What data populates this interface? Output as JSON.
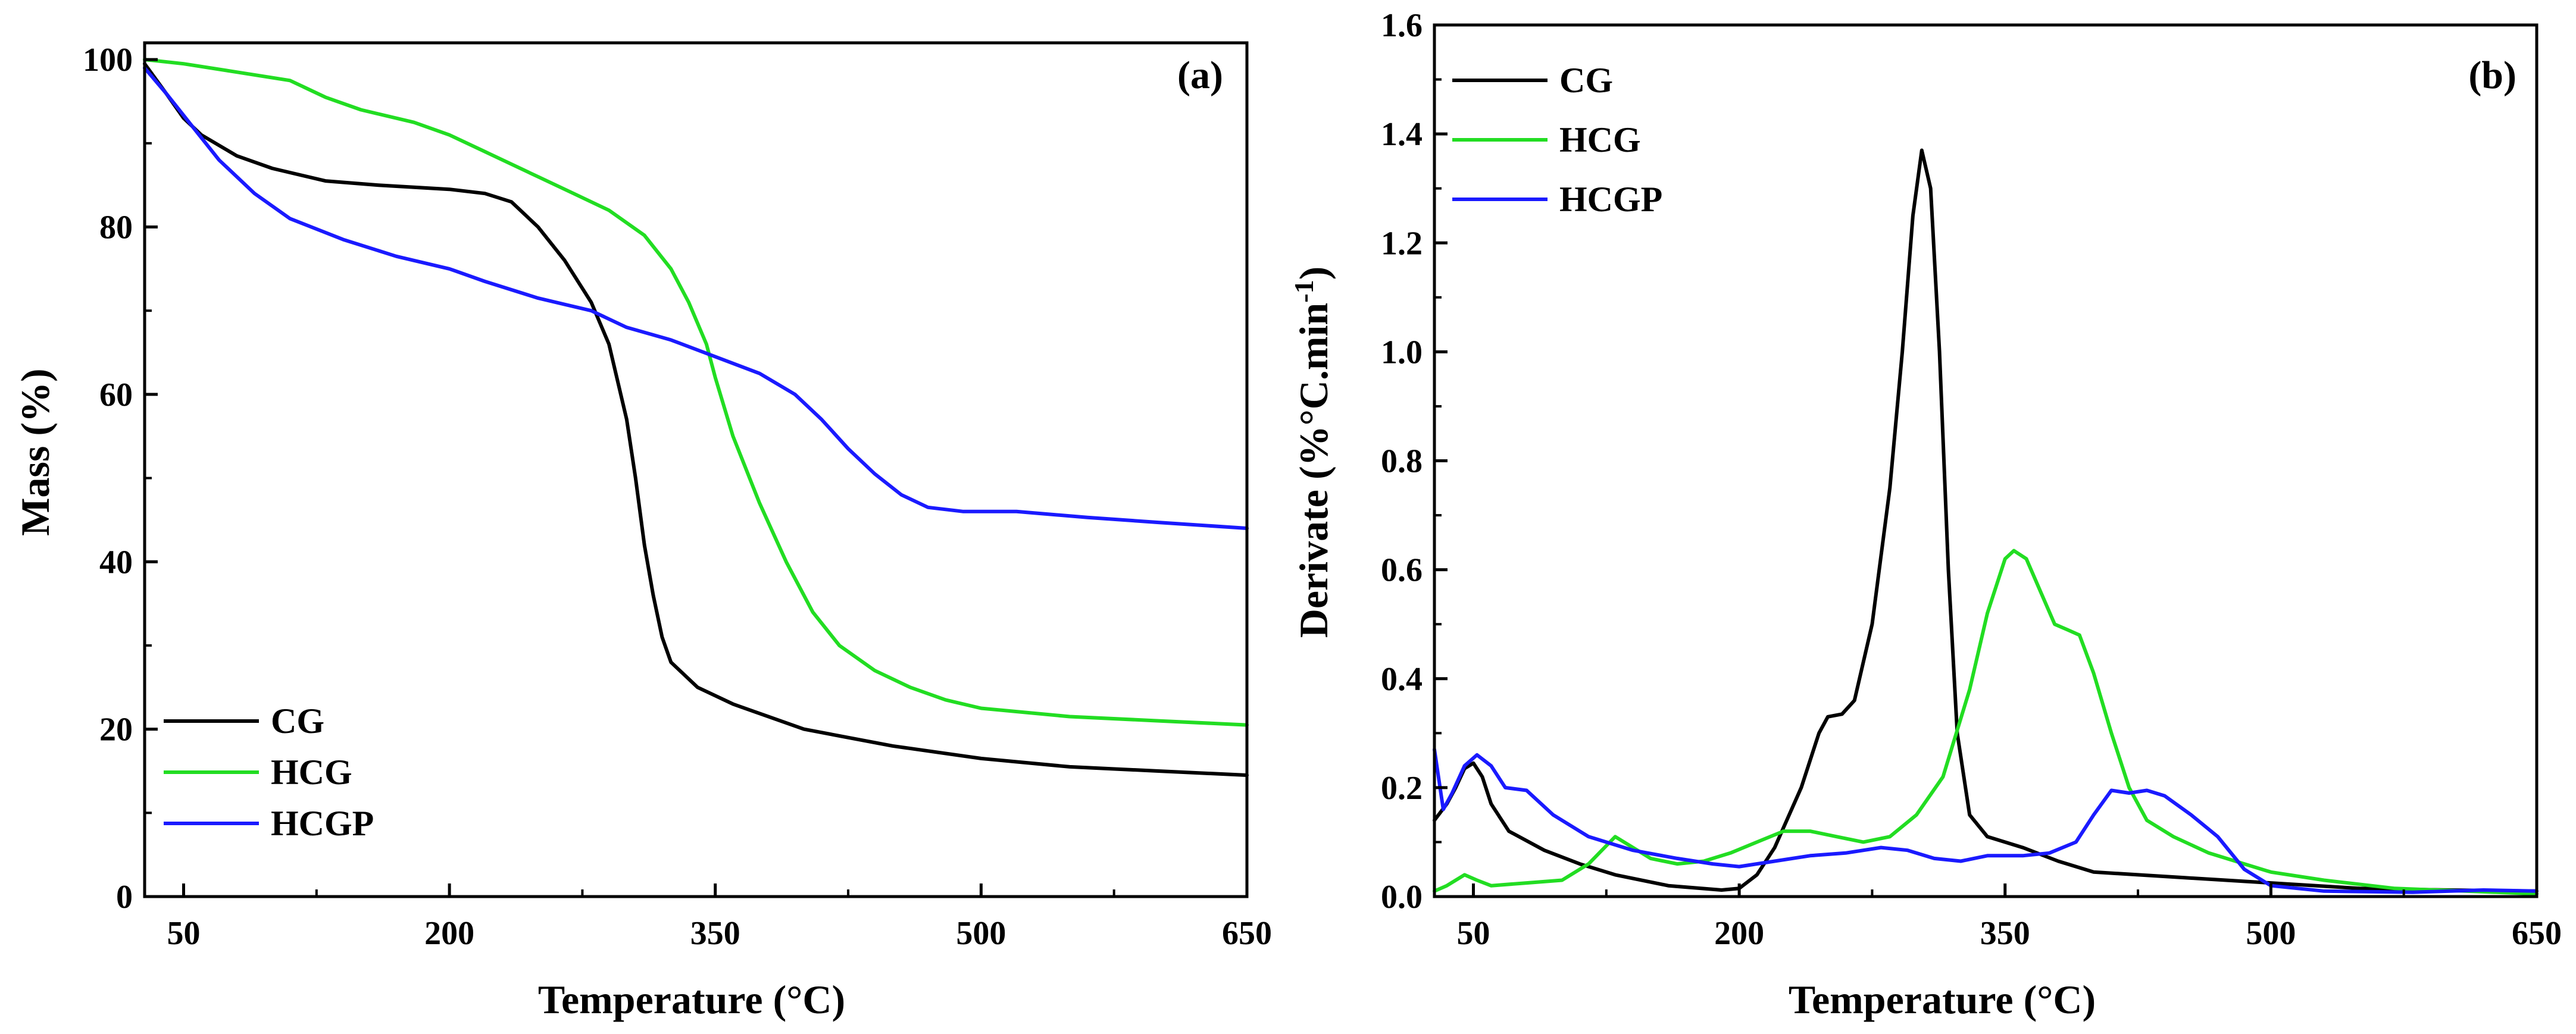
{
  "chart_data": [
    {
      "panel": "(a)",
      "type": "line",
      "title": "",
      "xlabel": "Temperature (°C)",
      "ylabel": "Mass (%)",
      "xlim": [
        28,
        650
      ],
      "ylim": [
        0,
        102
      ],
      "xticks": [
        50,
        200,
        350,
        500,
        650
      ],
      "yticks": [
        0,
        20,
        40,
        60,
        80,
        100
      ],
      "grid": false,
      "legend_position": "bottom-left",
      "series": [
        {
          "name": "CG",
          "color": "#000000",
          "points": [
            [
              28,
              99.5
            ],
            [
              40,
              96
            ],
            [
              50,
              93
            ],
            [
              60,
              91
            ],
            [
              80,
              88.5
            ],
            [
              100,
              87
            ],
            [
              130,
              85.5
            ],
            [
              160,
              85
            ],
            [
              200,
              84.5
            ],
            [
              220,
              84
            ],
            [
              235,
              83
            ],
            [
              250,
              80
            ],
            [
              265,
              76
            ],
            [
              280,
              71
            ],
            [
              290,
              66
            ],
            [
              300,
              57
            ],
            [
              305,
              50
            ],
            [
              310,
              42
            ],
            [
              315,
              36
            ],
            [
              320,
              31
            ],
            [
              325,
              28
            ],
            [
              340,
              25
            ],
            [
              360,
              23
            ],
            [
              400,
              20
            ],
            [
              450,
              18
            ],
            [
              500,
              16.5
            ],
            [
              550,
              15.5
            ],
            [
              600,
              15
            ],
            [
              650,
              14.5
            ]
          ]
        },
        {
          "name": "HCG",
          "color": "#22dd22",
          "points": [
            [
              28,
              100
            ],
            [
              50,
              99.5
            ],
            [
              80,
              98.5
            ],
            [
              110,
              97.5
            ],
            [
              130,
              95.5
            ],
            [
              150,
              94
            ],
            [
              180,
              92.5
            ],
            [
              200,
              91
            ],
            [
              220,
              89
            ],
            [
              250,
              86
            ],
            [
              270,
              84
            ],
            [
              290,
              82
            ],
            [
              310,
              79
            ],
            [
              325,
              75
            ],
            [
              335,
              71
            ],
            [
              345,
              66
            ],
            [
              350,
              62
            ],
            [
              360,
              55
            ],
            [
              375,
              47
            ],
            [
              390,
              40
            ],
            [
              405,
              34
            ],
            [
              420,
              30
            ],
            [
              440,
              27
            ],
            [
              460,
              25
            ],
            [
              480,
              23.5
            ],
            [
              500,
              22.5
            ],
            [
              550,
              21.5
            ],
            [
              600,
              21
            ],
            [
              650,
              20.5
            ]
          ]
        },
        {
          "name": "HCGP",
          "color": "#1a1aff",
          "points": [
            [
              28,
              99
            ],
            [
              40,
              96
            ],
            [
              55,
              92
            ],
            [
              70,
              88
            ],
            [
              90,
              84
            ],
            [
              110,
              81
            ],
            [
              140,
              78.5
            ],
            [
              170,
              76.5
            ],
            [
              200,
              75
            ],
            [
              220,
              73.5
            ],
            [
              250,
              71.5
            ],
            [
              280,
              70
            ],
            [
              300,
              68
            ],
            [
              325,
              66.5
            ],
            [
              350,
              64.5
            ],
            [
              375,
              62.5
            ],
            [
              395,
              60
            ],
            [
              410,
              57
            ],
            [
              425,
              53.5
            ],
            [
              440,
              50.5
            ],
            [
              455,
              48
            ],
            [
              470,
              46.5
            ],
            [
              490,
              46
            ],
            [
              520,
              46
            ],
            [
              560,
              45.3
            ],
            [
              600,
              44.7
            ],
            [
              650,
              44
            ]
          ]
        }
      ]
    },
    {
      "panel": "(b)",
      "type": "line",
      "title": "",
      "xlabel": "Temperature (°C)",
      "ylabel": "Derivate (%°C.min",
      "ylabel_superscript": "-1",
      "ylabel_close": ")",
      "xlim": [
        28,
        650
      ],
      "ylim": [
        0,
        1.6
      ],
      "xticks": [
        50,
        200,
        350,
        500,
        650
      ],
      "yticks": [
        0.0,
        0.2,
        0.4,
        0.6,
        0.8,
        1.0,
        1.2,
        1.4,
        1.6
      ],
      "ytick_labels": [
        "0.0",
        "0.2",
        "0.4",
        "0.6",
        "0.8",
        "1.0",
        "1.2",
        "1.4",
        "1.6"
      ],
      "grid": false,
      "legend_position": "top-left",
      "series": [
        {
          "name": "CG",
          "color": "#000000",
          "points": [
            [
              28,
              0.14
            ],
            [
              35,
              0.17
            ],
            [
              40,
              0.2
            ],
            [
              45,
              0.235
            ],
            [
              50,
              0.245
            ],
            [
              55,
              0.22
            ],
            [
              60,
              0.17
            ],
            [
              70,
              0.12
            ],
            [
              90,
              0.085
            ],
            [
              110,
              0.06
            ],
            [
              130,
              0.04
            ],
            [
              160,
              0.02
            ],
            [
              190,
              0.012
            ],
            [
              200,
              0.015
            ],
            [
              210,
              0.04
            ],
            [
              220,
              0.09
            ],
            [
              235,
              0.2
            ],
            [
              245,
              0.3
            ],
            [
              250,
              0.33
            ],
            [
              258,
              0.335
            ],
            [
              265,
              0.36
            ],
            [
              275,
              0.5
            ],
            [
              285,
              0.75
            ],
            [
              292,
              1.0
            ],
            [
              298,
              1.25
            ],
            [
              303,
              1.37
            ],
            [
              308,
              1.3
            ],
            [
              313,
              1.0
            ],
            [
              318,
              0.6
            ],
            [
              323,
              0.3
            ],
            [
              330,
              0.15
            ],
            [
              340,
              0.11
            ],
            [
              360,
              0.09
            ],
            [
              380,
              0.065
            ],
            [
              400,
              0.045
            ],
            [
              450,
              0.035
            ],
            [
              500,
              0.025
            ],
            [
              550,
              0.015
            ],
            [
              600,
              0.012
            ],
            [
              650,
              0.01
            ]
          ]
        },
        {
          "name": "HCG",
          "color": "#22dd22",
          "points": [
            [
              28,
              0.01
            ],
            [
              35,
              0.02
            ],
            [
              45,
              0.04
            ],
            [
              52,
              0.03
            ],
            [
              60,
              0.02
            ],
            [
              80,
              0.025
            ],
            [
              100,
              0.03
            ],
            [
              115,
              0.06
            ],
            [
              130,
              0.11
            ],
            [
              140,
              0.09
            ],
            [
              150,
              0.07
            ],
            [
              165,
              0.06
            ],
            [
              180,
              0.065
            ],
            [
              195,
              0.08
            ],
            [
              210,
              0.1
            ],
            [
              225,
              0.12
            ],
            [
              240,
              0.12
            ],
            [
              255,
              0.11
            ],
            [
              270,
              0.1
            ],
            [
              285,
              0.11
            ],
            [
              300,
              0.15
            ],
            [
              315,
              0.22
            ],
            [
              330,
              0.38
            ],
            [
              340,
              0.52
            ],
            [
              350,
              0.62
            ],
            [
              355,
              0.635
            ],
            [
              362,
              0.62
            ],
            [
              370,
              0.56
            ],
            [
              378,
              0.5
            ],
            [
              385,
              0.49
            ],
            [
              392,
              0.48
            ],
            [
              400,
              0.41
            ],
            [
              410,
              0.3
            ],
            [
              420,
              0.2
            ],
            [
              430,
              0.14
            ],
            [
              445,
              0.11
            ],
            [
              465,
              0.08
            ],
            [
              485,
              0.06
            ],
            [
              500,
              0.045
            ],
            [
              530,
              0.03
            ],
            [
              570,
              0.015
            ],
            [
              610,
              0.01
            ],
            [
              650,
              0.005
            ]
          ]
        },
        {
          "name": "HCGP",
          "color": "#1a1aff",
          "points": [
            [
              28,
              0.27
            ],
            [
              33,
              0.16
            ],
            [
              38,
              0.19
            ],
            [
              45,
              0.24
            ],
            [
              52,
              0.26
            ],
            [
              60,
              0.24
            ],
            [
              68,
              0.2
            ],
            [
              80,
              0.195
            ],
            [
              95,
              0.15
            ],
            [
              115,
              0.11
            ],
            [
              140,
              0.085
            ],
            [
              165,
              0.07
            ],
            [
              185,
              0.06
            ],
            [
              200,
              0.055
            ],
            [
              220,
              0.065
            ],
            [
              240,
              0.075
            ],
            [
              260,
              0.08
            ],
            [
              280,
              0.09
            ],
            [
              295,
              0.085
            ],
            [
              310,
              0.07
            ],
            [
              325,
              0.065
            ],
            [
              340,
              0.075
            ],
            [
              360,
              0.075
            ],
            [
              375,
              0.08
            ],
            [
              390,
              0.1
            ],
            [
              400,
              0.15
            ],
            [
              410,
              0.195
            ],
            [
              420,
              0.19
            ],
            [
              430,
              0.195
            ],
            [
              440,
              0.185
            ],
            [
              455,
              0.15
            ],
            [
              470,
              0.11
            ],
            [
              485,
              0.05
            ],
            [
              500,
              0.02
            ],
            [
              530,
              0.01
            ],
            [
              580,
              0.008
            ],
            [
              620,
              0.012
            ],
            [
              650,
              0.01
            ]
          ]
        }
      ]
    }
  ]
}
